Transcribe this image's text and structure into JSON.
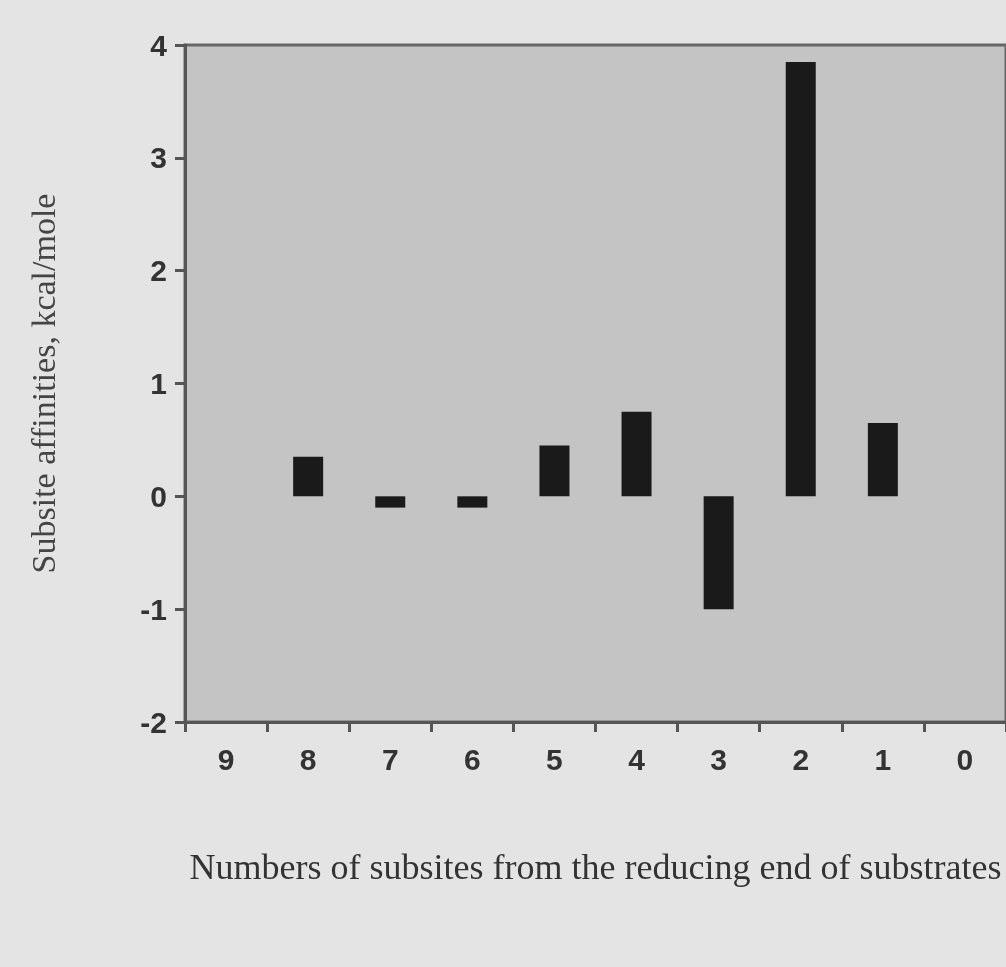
{
  "chart_data": {
    "type": "bar",
    "xlabel": "Numbers of subsites from the reducing end of substrates",
    "ylabel": "Subsite affinities, kcal/mole",
    "categories": [
      "9",
      "8",
      "7",
      "6",
      "5",
      "4",
      "3",
      "2",
      "1",
      "0"
    ],
    "series": [
      {
        "color": "#1a1a1a",
        "values": [
          null,
          0.35,
          -0.1,
          -0.1,
          0.45,
          0.75,
          -1.0,
          3.85,
          0.65,
          null
        ]
      }
    ],
    "ylim": [
      -2,
      4
    ],
    "yticks": [
      -2,
      -1,
      0,
      1,
      2,
      3,
      4
    ],
    "grid": false
  }
}
